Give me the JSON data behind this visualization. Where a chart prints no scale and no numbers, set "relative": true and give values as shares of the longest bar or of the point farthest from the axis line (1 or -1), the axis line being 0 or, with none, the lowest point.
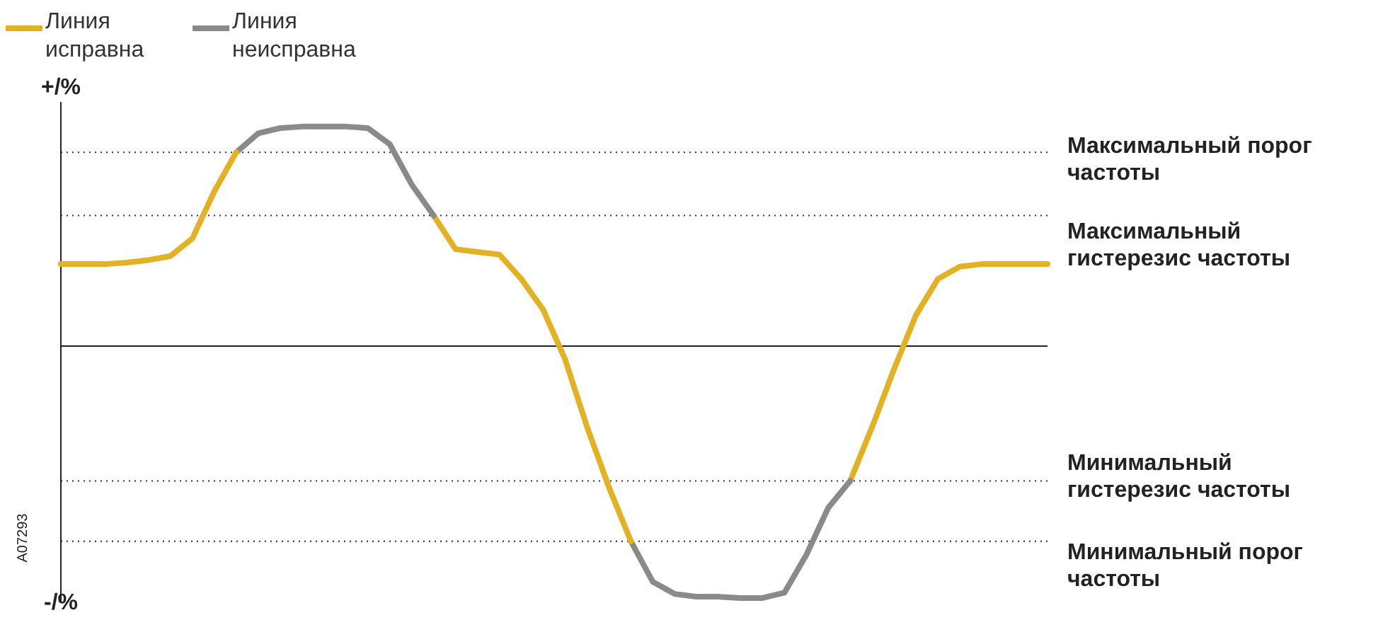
{
  "chart_data": {
    "type": "line",
    "relative": true,
    "grid": false,
    "marker": "none",
    "line_style": "solid",
    "legend": "top left",
    "categories": [
      null,
      null,
      null,
      null,
      null,
      null,
      null,
      null,
      null,
      null,
      null,
      null,
      null,
      null,
      null,
      null,
      null,
      null,
      null,
      null,
      null,
      null,
      null,
      null,
      null,
      null,
      null,
      null,
      null,
      null,
      null,
      null,
      null,
      null,
      null,
      null,
      null,
      null,
      null,
      null,
      null,
      null,
      null,
      null,
      null,
      null
    ],
    "series": [
      {
        "name": "Линия исправна",
        "color": "#e3b224",
        "values": [
          0.326,
          0.326,
          0.326,
          0.332,
          0.342,
          0.358,
          0.428,
          0.615,
          0.77,
          null,
          null,
          null,
          null,
          null,
          null,
          null,
          null,
          null,
          null,
          null,
          null,
          null,
          null,
          null,
          null,
          null,
          null,
          null,
          null,
          null,
          null,
          null,
          null,
          null,
          null,
          null,
          null,
          null,
          null,
          null,
          null,
          null,
          null,
          null,
          null,
          null
        ]
      },
      {
        "name": "Линия неисправна",
        "color": "#8a8a8a",
        "values": [
          null,
          null,
          null,
          null,
          null,
          null,
          null,
          null,
          0.77,
          0.845,
          0.866,
          0.872,
          0.872,
          0.872,
          0.866,
          0.802,
          0.642,
          0.519,
          null,
          null,
          null,
          null,
          null,
          null,
          null,
          null,
          null,
          null,
          null,
          null,
          null,
          null,
          null,
          null,
          null,
          null,
          null,
          null,
          null,
          null,
          null,
          null,
          null,
          null,
          null,
          null
        ]
      },
      {
        "color": "#e3b224",
        "values": [
          null,
          null,
          null,
          null,
          null,
          null,
          null,
          null,
          null,
          null,
          null,
          null,
          null,
          null,
          null,
          null,
          null,
          0.519,
          0.385,
          0.374,
          0.364,
          0.267,
          0.144,
          -0.053,
          -0.321,
          -0.561,
          -0.775,
          null,
          null,
          null,
          null,
          null,
          null,
          null,
          null,
          null,
          null,
          null,
          null,
          null,
          null,
          null,
          null,
          null,
          null,
          null
        ]
      },
      {
        "color": "#8a8a8a",
        "values": [
          null,
          null,
          null,
          null,
          null,
          null,
          null,
          null,
          null,
          null,
          null,
          null,
          null,
          null,
          null,
          null,
          null,
          null,
          null,
          null,
          null,
          null,
          null,
          null,
          null,
          null,
          -0.775,
          -0.936,
          -0.984,
          -0.995,
          -0.995,
          -1,
          -1,
          -0.979,
          -0.829,
          -0.642,
          -0.535,
          null,
          null,
          null,
          null,
          null,
          null,
          null,
          null,
          null
        ]
      },
      {
        "color": "#e3b224",
        "values": [
          null,
          null,
          null,
          null,
          null,
          null,
          null,
          null,
          null,
          null,
          null,
          null,
          null,
          null,
          null,
          null,
          null,
          null,
          null,
          null,
          null,
          null,
          null,
          null,
          null,
          null,
          null,
          null,
          null,
          null,
          null,
          null,
          null,
          null,
          null,
          null,
          -0.535,
          -0.321,
          -0.091,
          0.123,
          0.267,
          0.316,
          0.326,
          0.326,
          0.326,
          0.326
        ]
      }
    ],
    "ref_lines": [
      {
        "axis": "y",
        "value": 0.77,
        "label": "Максимальный порог частоты",
        "color": "#333333",
        "line_style": "dotted"
      },
      {
        "axis": "y",
        "value": 0.519,
        "label": "Максимальный гистерезис частоты",
        "color": "#333333",
        "line_style": "dotted"
      },
      {
        "axis": "y",
        "value": -0.535,
        "label": "Минимальный гистерезис частоты",
        "color": "#333333",
        "line_style": "dotted"
      },
      {
        "axis": "y",
        "value": -0.775,
        "label": "Минимальный порог частоты",
        "color": "#333333",
        "line_style": "dotted"
      }
    ],
    "annotations": [
      "+/%",
      "-/%",
      "A07293"
    ]
  }
}
